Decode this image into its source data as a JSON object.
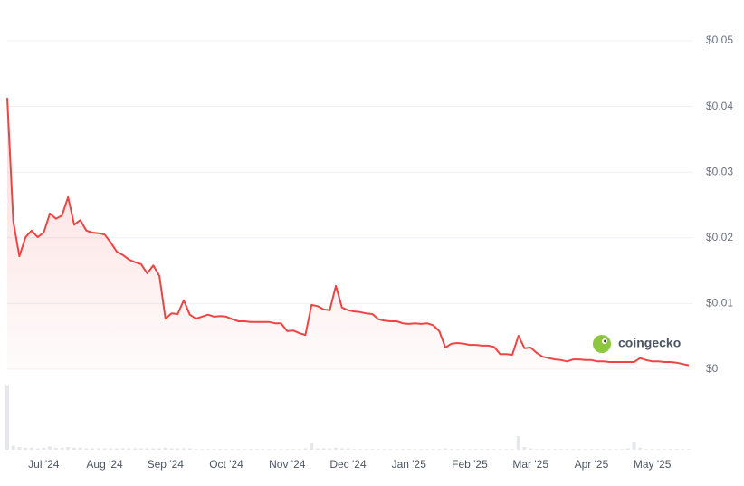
{
  "chart_data": [
    {
      "type": "line",
      "categories": [
        null,
        null,
        null,
        null,
        null,
        null,
        "Jul '24",
        null,
        null,
        null,
        null,
        null,
        null,
        null,
        null,
        null,
        "Aug '24",
        null,
        null,
        null,
        null,
        null,
        null,
        null,
        null,
        null,
        "Sep '24",
        null,
        null,
        null,
        null,
        null,
        null,
        null,
        null,
        null,
        "Oct '24",
        null,
        null,
        null,
        null,
        null,
        null,
        null,
        null,
        null,
        "Nov '24",
        null,
        null,
        null,
        null,
        null,
        null,
        null,
        null,
        null,
        "Dec '24",
        null,
        null,
        null,
        null,
        null,
        null,
        null,
        null,
        null,
        "Jan '25",
        null,
        null,
        null,
        null,
        null,
        null,
        null,
        null,
        null,
        "Feb '25",
        null,
        null,
        null,
        null,
        null,
        null,
        null,
        null,
        null,
        "Mar '25",
        null,
        null,
        null,
        null,
        null,
        null,
        null,
        null,
        null,
        "Apr '25",
        null,
        null,
        null,
        null,
        null,
        null,
        null,
        null,
        null,
        "May '25",
        null,
        null,
        null,
        null,
        null,
        null
      ],
      "series": [
        {
          "color": "#ef4444",
          "values": [
            0.0413,
            0.0225,
            0.0172,
            0.0201,
            0.0211,
            0.0201,
            0.0208,
            0.0237,
            0.0229,
            0.0234,
            0.0262,
            0.022,
            0.0227,
            0.0211,
            0.0208,
            0.0207,
            0.0205,
            0.0193,
            0.0179,
            0.0174,
            0.0167,
            0.0163,
            0.016,
            0.0146,
            0.0158,
            0.0142,
            0.0077,
            0.0085,
            0.0084,
            0.0105,
            0.0083,
            0.0077,
            0.008,
            0.0083,
            0.008,
            0.0081,
            0.008,
            0.0076,
            0.0073,
            0.0073,
            0.0072,
            0.0072,
            0.0072,
            0.0072,
            0.007,
            0.007,
            0.0058,
            0.0059,
            0.0055,
            0.0052,
            0.0098,
            0.0096,
            0.0091,
            0.009,
            0.0127,
            0.0094,
            0.009,
            0.0088,
            0.0087,
            0.0085,
            0.0084,
            0.0076,
            0.0074,
            0.0073,
            0.0073,
            0.007,
            0.0069,
            0.007,
            0.0069,
            0.007,
            0.0067,
            0.0058,
            0.0033,
            0.0039,
            0.004,
            0.0039,
            0.0037,
            0.0037,
            0.0036,
            0.0036,
            0.0034,
            0.0023,
            0.0023,
            0.0022,
            0.0051,
            0.0032,
            0.0033,
            0.0025,
            0.0019,
            0.0017,
            0.0015,
            0.0014,
            0.0012,
            0.0015,
            0.0015,
            0.0014,
            0.0014,
            0.0012,
            0.0012,
            0.0011,
            0.0011,
            0.0011,
            0.0011,
            0.0011,
            0.0017,
            0.0014,
            0.0012,
            0.0012,
            0.0011,
            0.0011,
            0.001,
            0.0008,
            0.0006
          ]
        }
      ],
      "ylim": [
        0,
        0.05
      ],
      "yticks": [
        {
          "value": 0,
          "label": "$0"
        },
        {
          "value": 0.01,
          "label": "$0.01"
        },
        {
          "value": 0.02,
          "label": "$0.02"
        },
        {
          "value": 0.03,
          "label": "$0.03"
        },
        {
          "value": 0.04,
          "label": "$0.04"
        },
        {
          "value": 0.05,
          "label": "$0.05"
        }
      ],
      "grid": true,
      "watermark": "coingecko"
    },
    {
      "type": "bar",
      "color": "#e5e7eb",
      "ylim": [
        0,
        1
      ],
      "values": [
        0.95,
        0.06,
        0.04,
        0.03,
        0.03,
        0.02,
        0.03,
        0.05,
        0.03,
        0.03,
        0.04,
        0.03,
        0.03,
        0.02,
        0.02,
        0.02,
        0.02,
        0.02,
        0.02,
        0.02,
        0.02,
        0.02,
        0.02,
        0.02,
        0.02,
        0.02,
        0.03,
        0.02,
        0.02,
        0.02,
        0.02,
        0.01,
        0.01,
        0.01,
        0.01,
        0.01,
        0.01,
        0.01,
        0.01,
        0.01,
        0.01,
        0.01,
        0.01,
        0.01,
        0.01,
        0.01,
        0.01,
        0.01,
        0.01,
        0.02,
        0.1,
        0.02,
        0.02,
        0.02,
        0.03,
        0.02,
        0.02,
        0.01,
        0.01,
        0.01,
        0.01,
        0.01,
        0.01,
        0.01,
        0.01,
        0.01,
        0.01,
        0.01,
        0.01,
        0.01,
        0.01,
        0.01,
        0.02,
        0.01,
        0.01,
        0.01,
        0.01,
        0.01,
        0.01,
        0.01,
        0.01,
        0.01,
        0.01,
        0.01,
        0.2,
        0.04,
        0.02,
        0.01,
        0.01,
        0.01,
        0.01,
        0.01,
        0.01,
        0.01,
        0.01,
        0.01,
        0.01,
        0.01,
        0.01,
        0.01,
        0.01,
        0.01,
        0.02,
        0.12,
        0.03,
        0.01,
        0.01,
        0.01,
        0.01,
        0.01,
        0.01,
        0.01,
        0.01
      ]
    }
  ]
}
